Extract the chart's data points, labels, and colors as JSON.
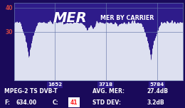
{
  "title_mer": "MER",
  "title_by_carrier": "MER BY CARRIER",
  "plot_bg": "#2e1b8a",
  "outer_bg": "#1a0a5a",
  "signal_color": "#ffffff",
  "signal_fill_color": "#dde0f0",
  "grid_color": "#6677aa",
  "ytick_color": "#cc4444",
  "ylim": [
    10,
    42
  ],
  "yticks": [
    30,
    40
  ],
  "xtick_labels": [
    "1652",
    "3718",
    "5784"
  ],
  "xtick_positions": [
    1652,
    3718,
    5784
  ],
  "xmin": 0,
  "xmax": 6840,
  "avg_mer": "27.4dB",
  "std_dev": "3.2dB",
  "freq": "634.00",
  "c_val": "41",
  "standard": "MPEG-2 TS DVB-T",
  "footer_bg1": "#8a9ac8",
  "footer_bg2": "#2e1b8a",
  "c_val_color": "#ff2020",
  "xtick_box_color": "#2e1b8a",
  "baseline_y": 10
}
